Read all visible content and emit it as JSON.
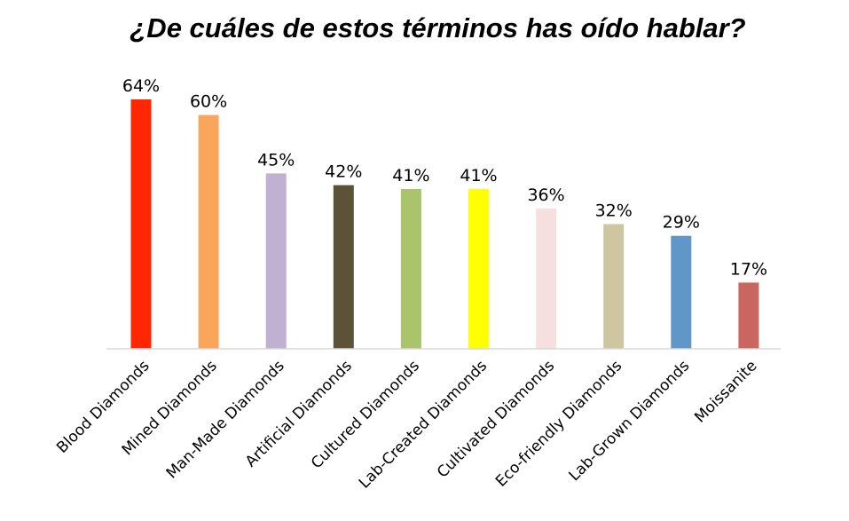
{
  "chart_data": {
    "type": "bar",
    "title": "¿De cuáles de estos términos has oído hablar?",
    "categories": [
      "Blood Diamonds",
      "Mined Diamonds",
      "Man-Made Diamonds",
      "Artificial Diamonds",
      "Cultured Diamonds",
      "Lab-Created Diamonds",
      "Cultivated Diamonds",
      "Eco-friendly Diamonds",
      "Lab-Grown Diamonds",
      "Moissanite"
    ],
    "values": [
      64,
      60,
      45,
      42,
      41,
      41,
      36,
      32,
      29,
      17
    ],
    "value_labels": [
      "64%",
      "60%",
      "45%",
      "42%",
      "41%",
      "41%",
      "36%",
      "32%",
      "29%",
      "17%"
    ],
    "colors": [
      "#ff2600",
      "#f9a55b",
      "#c0b1d3",
      "#5b5238",
      "#a9c46a",
      "#ffff00",
      "#f6e0df",
      "#cec5a1",
      "#6196c9",
      "#c96660"
    ],
    "ylim": [
      0,
      64
    ],
    "grid": false,
    "legend": "none"
  }
}
